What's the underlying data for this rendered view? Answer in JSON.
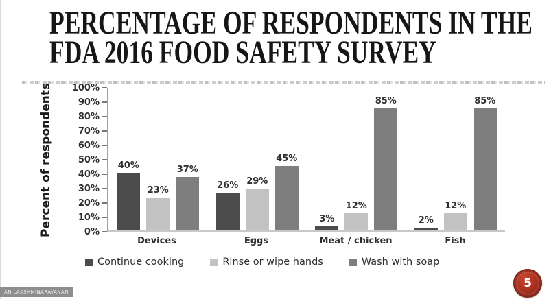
{
  "slide": {
    "title_line1": "PERCENTAGE OF RESPONDENTS IN THE",
    "title_line2": "FDA 2016 FOOD SAFETY SURVEY",
    "watermark_text": "AN LAKSHMINARAYANAN",
    "page_number": "5"
  },
  "colors": {
    "series_dark": "#4c4c4c",
    "series_light": "#c2c2c2",
    "series_medium": "#7e7e7e",
    "badge_red": "#a52c1c",
    "badge_red_dark": "#7a1c10",
    "watermark_bg": "#8e8e8e"
  },
  "chart_data": {
    "type": "bar",
    "title": "",
    "xlabel": "",
    "ylabel": "Percent of respondents",
    "ylim": [
      0,
      100
    ],
    "ytick_step": 10,
    "yticks": [
      "100%",
      "90%",
      "80%",
      "70%",
      "60%",
      "50%",
      "40%",
      "30%",
      "20%",
      "10%",
      "0%"
    ],
    "grid": false,
    "legend_position": "bottom",
    "categories": [
      "Devices",
      "Eggs",
      "Meat / chicken",
      "Fish"
    ],
    "series": [
      {
        "name": "Continue cooking",
        "color": "#4c4c4c",
        "values": [
          40,
          26,
          3,
          2
        ]
      },
      {
        "name": "Rinse or wipe hands",
        "color": "#c2c2c2",
        "values": [
          23,
          29,
          12,
          12
        ]
      },
      {
        "name": "Wash with soap",
        "color": "#7e7e7e",
        "values": [
          37,
          45,
          85,
          85
        ]
      }
    ],
    "value_suffix": "%"
  }
}
